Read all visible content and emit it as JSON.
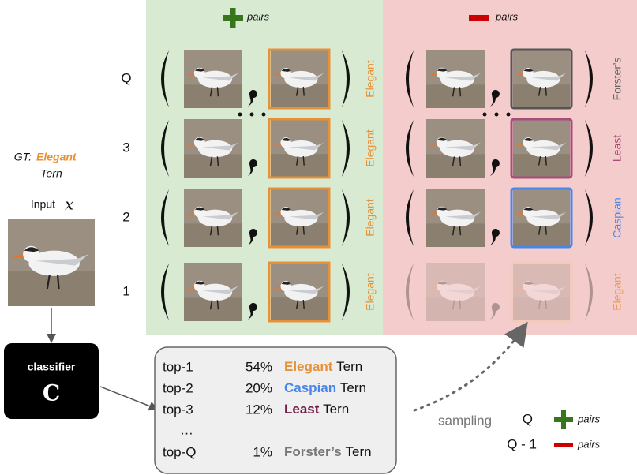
{
  "header": {
    "positive": "pairs",
    "negative": "pairs"
  },
  "rows": [
    {
      "label": "Q",
      "positive": "Elegant",
      "negative": "Forster’s"
    },
    {
      "label": "3",
      "positive": "Elegant",
      "negative": "Least"
    },
    {
      "label": "2",
      "positive": "Elegant",
      "negative": "Caspian"
    },
    {
      "label": "1",
      "positive": "Elegant",
      "negative": "Elegant"
    }
  ],
  "ground_truth": {
    "prefix": "GT:",
    "class": "Elegant",
    "suffix": "Tern"
  },
  "input": {
    "label": "Input",
    "symbol": "x"
  },
  "classifier": {
    "label": "classifier",
    "symbol": "C"
  },
  "ranking": {
    "rows": [
      {
        "rank": "top-1",
        "prob": "54%",
        "name": "Elegant",
        "suffix": "Tern"
      },
      {
        "rank": "top-2",
        "prob": "20%",
        "name": "Caspian",
        "suffix": "Tern"
      },
      {
        "rank": "top-3",
        "prob": "12%",
        "name": "Least",
        "suffix": "Tern"
      },
      {
        "rank": "top-Q",
        "prob": "1%",
        "name": "Forster’s",
        "suffix": "Tern"
      }
    ],
    "ellipsis": "…"
  },
  "sampling": "sampling",
  "legend": [
    {
      "count": "Q",
      "label": "pairs"
    },
    {
      "count": "Q - 1",
      "label": "pairs"
    }
  ]
}
